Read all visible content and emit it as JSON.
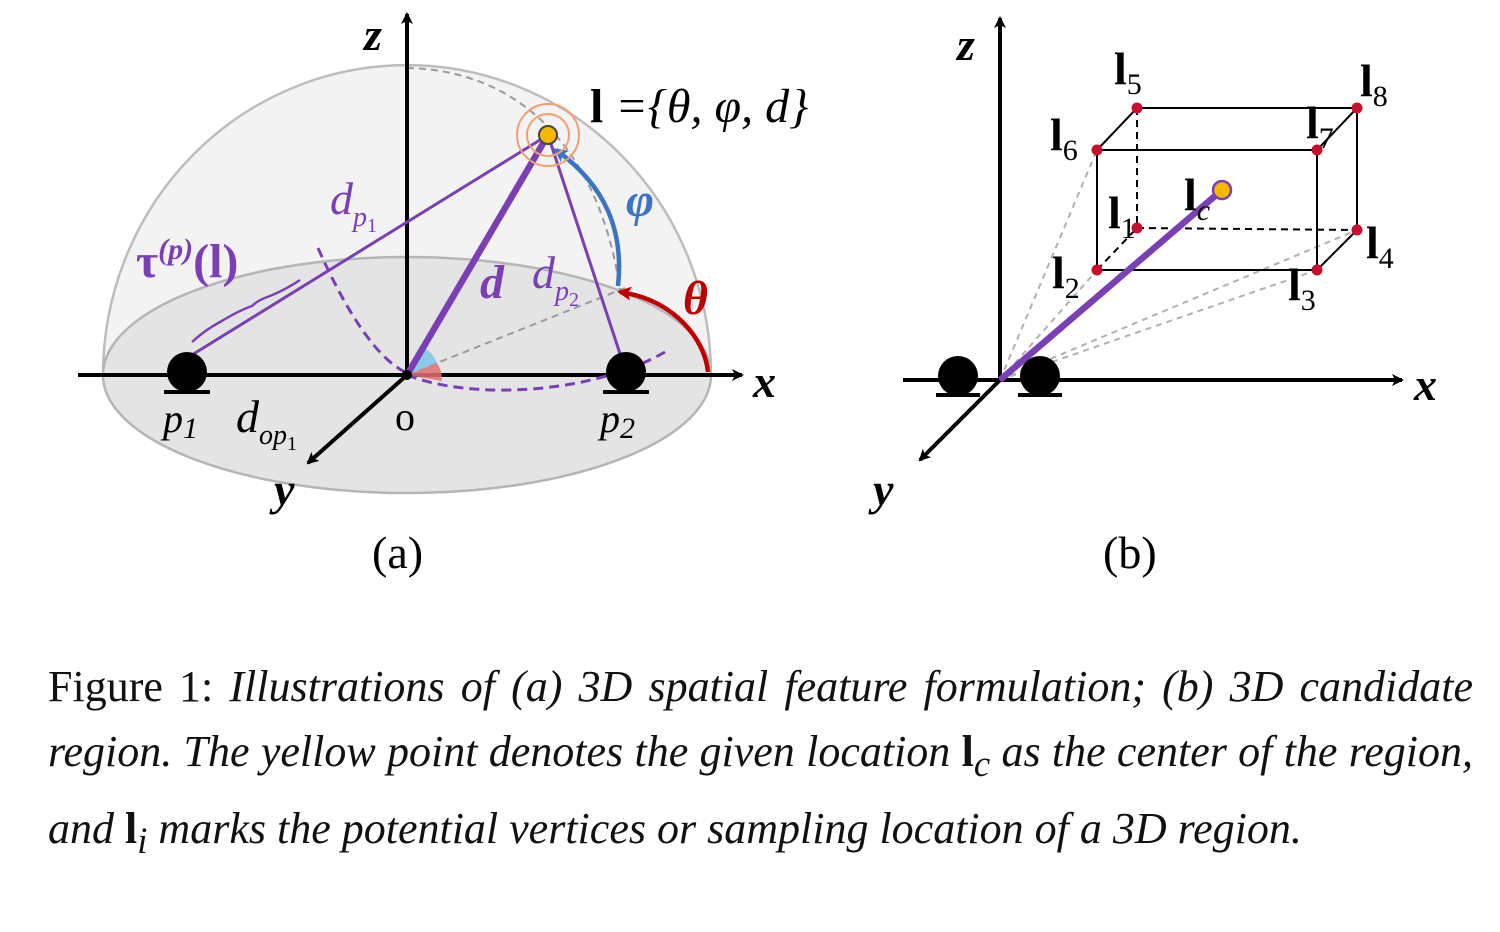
{
  "panel_a": {
    "label": "(a)",
    "axis_z": "z",
    "axis_x": "x",
    "axis_y": "y",
    "origin": "o",
    "l_bold": "l",
    "l_set": " ={θ, φ, d}",
    "theta": "θ",
    "phi": "φ",
    "d": "d",
    "dp1": "d",
    "dp1_sub": "p",
    "dp1_subsub": "1",
    "dp2": "d",
    "dp2_sub": "p",
    "dp2_subsub": "2",
    "tau": "τ",
    "tau_sup": "(p)",
    "tau_arg": "(l)",
    "p1": "p",
    "p1_sub": "1",
    "p2": "p",
    "p2_sub": "2",
    "dop1": "d",
    "dop1_sub": "op",
    "dop1_subsub": "1"
  },
  "panel_b": {
    "label": "(b)",
    "axis_z": "z",
    "axis_x": "x",
    "axis_y": "y",
    "vertex_symbol": "l",
    "vertex_numbers": [
      "1",
      "2",
      "3",
      "4",
      "5",
      "6",
      "7",
      "8"
    ],
    "center_sub": "c"
  },
  "caption": {
    "prefix": "Figure 1: ",
    "part1": "Illustrations of (a) 3D spatial feature formulation; (b) 3D candidate region. The yellow point denotes the given location ",
    "lc_symbol": "l",
    "lc_sub": "c",
    "part2": " as the center of the region, and ",
    "li_symbol": "l",
    "li_sub": "i",
    "part3": " marks the potential vertices or sampling location of a 3D region."
  },
  "colors": {
    "purple": "#7b3fb5",
    "red": "#c00000",
    "blue": "#3b74c4",
    "yellow": "#f5b800",
    "orange_ring": "#f0a070",
    "dome_fill": "#e9e9e9",
    "vertex_red": "#c8102e"
  }
}
